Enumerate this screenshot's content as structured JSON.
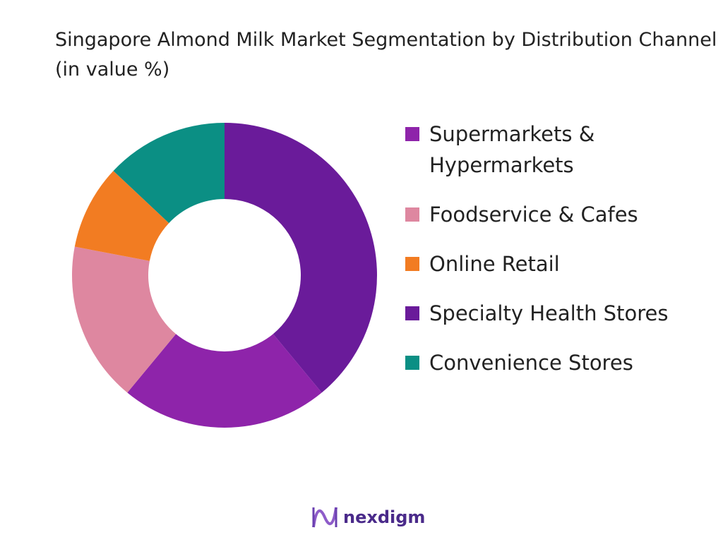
{
  "chart_data": {
    "type": "donut",
    "title": "Singapore Almond Milk Market Segmentation by Distribution Channel (in value %)",
    "categories": [
      "Supermarkets & Hypermarkets",
      "Foodservice & Cafes",
      "Online Retail",
      "Specialty Health Stores",
      "Convenience Stores"
    ],
    "values": [
      22,
      17,
      9,
      39,
      13
    ],
    "colors": [
      "#8e24aa",
      "#de87a0",
      "#f27c22",
      "#6a1b9a",
      "#0b8f84"
    ],
    "legend": "right"
  },
  "brand": "nexdigm"
}
